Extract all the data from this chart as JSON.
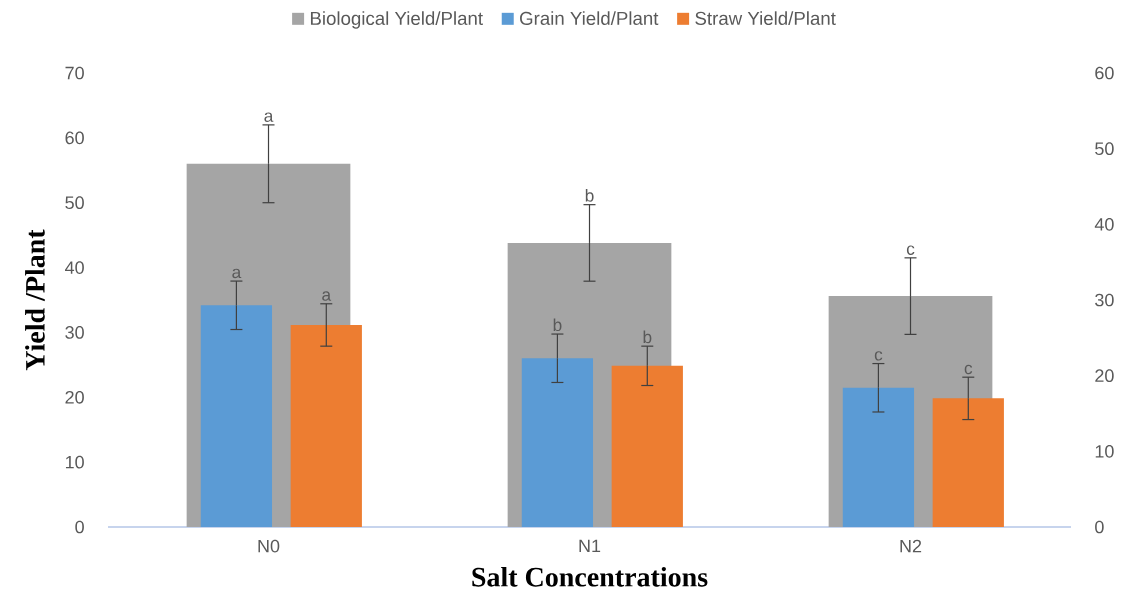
{
  "chart_data": {
    "type": "bar",
    "xlabel": "Salt Concentrations",
    "ylabel": "Yield /Plant",
    "categories": [
      "N0",
      "N1",
      "N2"
    ],
    "series": [
      {
        "name": "Biological Yield/Plant",
        "color": "#a5a5a5",
        "values": [
          56,
          43.8,
          35.6
        ],
        "errors": [
          6,
          5.9,
          5.9
        ],
        "value_labels": [
          "a",
          "b",
          "c"
        ]
      },
      {
        "name": "Grain Yield/Plant",
        "color": "#5b9bd5",
        "axis": "y2",
        "values": [
          29.3,
          22.3,
          18.4
        ],
        "errors": [
          3.2,
          3.2,
          3.2
        ],
        "value_labels": [
          "a",
          "b",
          "c"
        ]
      },
      {
        "name": "Straw Yield/Plant",
        "color": "#ed7d31",
        "axis": "y2",
        "values": [
          26.7,
          21.3,
          17.0
        ],
        "errors": [
          2.8,
          2.6,
          2.8
        ],
        "value_labels": [
          "a",
          "b",
          "c"
        ]
      }
    ],
    "ylim": [
      0,
      70
    ],
    "yticks": [
      0,
      10,
      20,
      30,
      40,
      50,
      60,
      70
    ],
    "y2lim": [
      0,
      60
    ],
    "y2ticks": [
      0,
      10,
      20,
      30,
      40,
      50,
      60
    ],
    "legend": "top",
    "grid": false
  }
}
